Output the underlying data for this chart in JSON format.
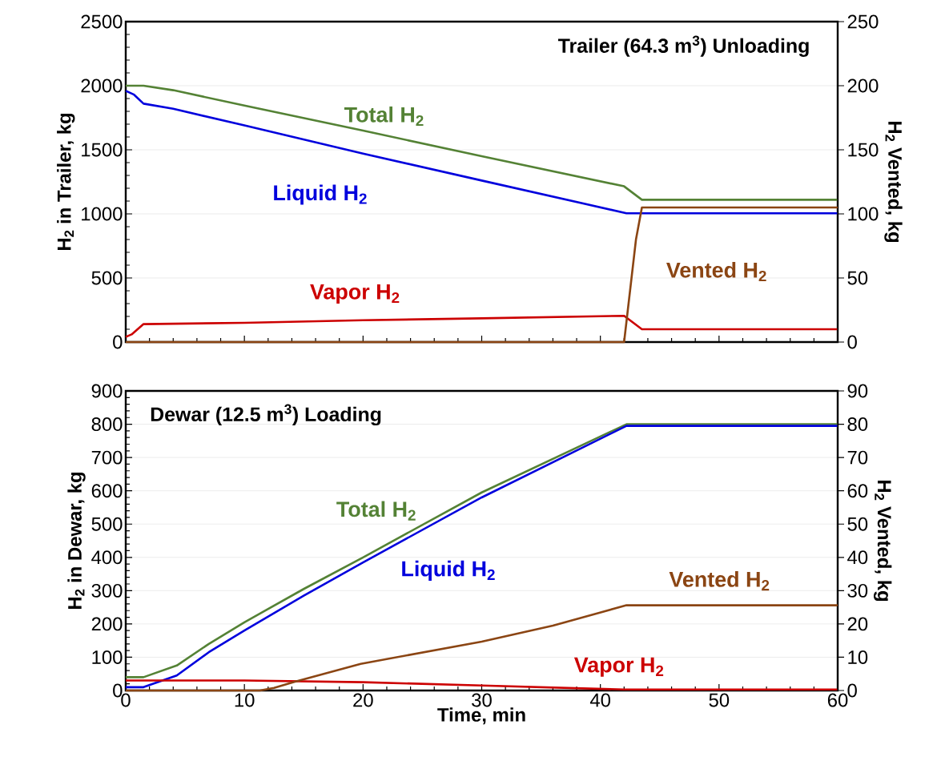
{
  "chart_data": [
    {
      "type": "line",
      "title": "Trailer (64.3 m$^{3}$) Unloading",
      "ylabel": "H$_{2}$ in Trailer, kg",
      "y2label": "H$_{2}$ Vented, kg",
      "xlim": [
        0,
        60
      ],
      "xticks": [
        0,
        10,
        20,
        30,
        40,
        50,
        60
      ],
      "ylim": [
        0,
        2500
      ],
      "yticks": [
        0,
        500,
        1000,
        1500,
        2000,
        2500
      ],
      "y2lim": [
        0,
        250
      ],
      "y2ticks": [
        0,
        50,
        100,
        150,
        200,
        250
      ],
      "grid": "y",
      "tick_labels": "y",
      "series": [
        {
          "name": "Total H$_{2}$",
          "color": "#548235",
          "x": [
            0,
            1.5,
            4,
            10,
            20,
            30,
            42,
            43.5,
            60
          ],
          "values": [
            2000,
            2000,
            1965,
            1845,
            1650,
            1450,
            1215,
            1110,
            1110
          ]
        },
        {
          "name": "Liquid H$_{2}$",
          "color": "#0000dd",
          "x": [
            0,
            0.7,
            1.5,
            4,
            10,
            20,
            30,
            42.2,
            60
          ],
          "values": [
            1960,
            1930,
            1860,
            1820,
            1690,
            1470,
            1260,
            1005,
            1005
          ]
        },
        {
          "name": "Vapor H$_{2}$",
          "color": "#cc0000",
          "x": [
            0,
            0.5,
            1.5,
            10,
            20,
            30,
            42,
            43.5,
            60
          ],
          "values": [
            40,
            60,
            140,
            150,
            170,
            185,
            205,
            100,
            100
          ]
        },
        {
          "name": "Vented H$_{2}$",
          "color": "#8b4513",
          "axis": "y2",
          "x": [
            0,
            42,
            42.5,
            43,
            43.5,
            60
          ],
          "values": [
            0,
            0,
            40,
            80,
            105,
            105
          ]
        }
      ]
    },
    {
      "type": "line",
      "title": "Dewar (12.5 m$^{3}$) Loading",
      "xlabel": "Time, min",
      "ylabel": "H$_{2}$ in Dewar, kg",
      "y2label": "H$_{2}$ Vented, kg",
      "xlim": [
        0,
        60
      ],
      "xticks": [
        0,
        10,
        20,
        30,
        40,
        50,
        60
      ],
      "ylim": [
        0,
        900
      ],
      "yticks": [
        0,
        100,
        200,
        300,
        400,
        500,
        600,
        700,
        800,
        900
      ],
      "y2lim": [
        0,
        90
      ],
      "y2ticks": [
        0,
        10,
        20,
        30,
        40,
        50,
        60,
        70,
        80,
        90
      ],
      "grid": "y",
      "series": [
        {
          "name": "Total H$_{2}$",
          "color": "#548235",
          "x": [
            0,
            1.5,
            4.3,
            7,
            10,
            15,
            20,
            30,
            42.2,
            60
          ],
          "values": [
            40,
            40,
            75,
            140,
            205,
            305,
            400,
            595,
            800,
            800
          ]
        },
        {
          "name": "Liquid H$_{2}$",
          "color": "#0000dd",
          "x": [
            0,
            1.5,
            4.3,
            7,
            10,
            15,
            20,
            30,
            42.2,
            60
          ],
          "values": [
            10,
            10,
            45,
            115,
            180,
            285,
            385,
            580,
            795,
            795
          ]
        },
        {
          "name": "Vapor H$_{2}$",
          "color": "#cc0000",
          "x": [
            0,
            10,
            20,
            30,
            42,
            60
          ],
          "values": [
            30,
            30,
            25,
            15,
            3,
            3
          ]
        },
        {
          "name": "Vented H$_{2}$",
          "color": "#8b4513",
          "axis": "y2",
          "x": [
            0,
            11.3,
            12.5,
            14.2,
            19.8,
            30,
            36,
            42.2,
            60
          ],
          "values": [
            0,
            0,
            0.8,
            2.6,
            8,
            14.7,
            19.5,
            25.6,
            25.6
          ]
        }
      ]
    }
  ]
}
